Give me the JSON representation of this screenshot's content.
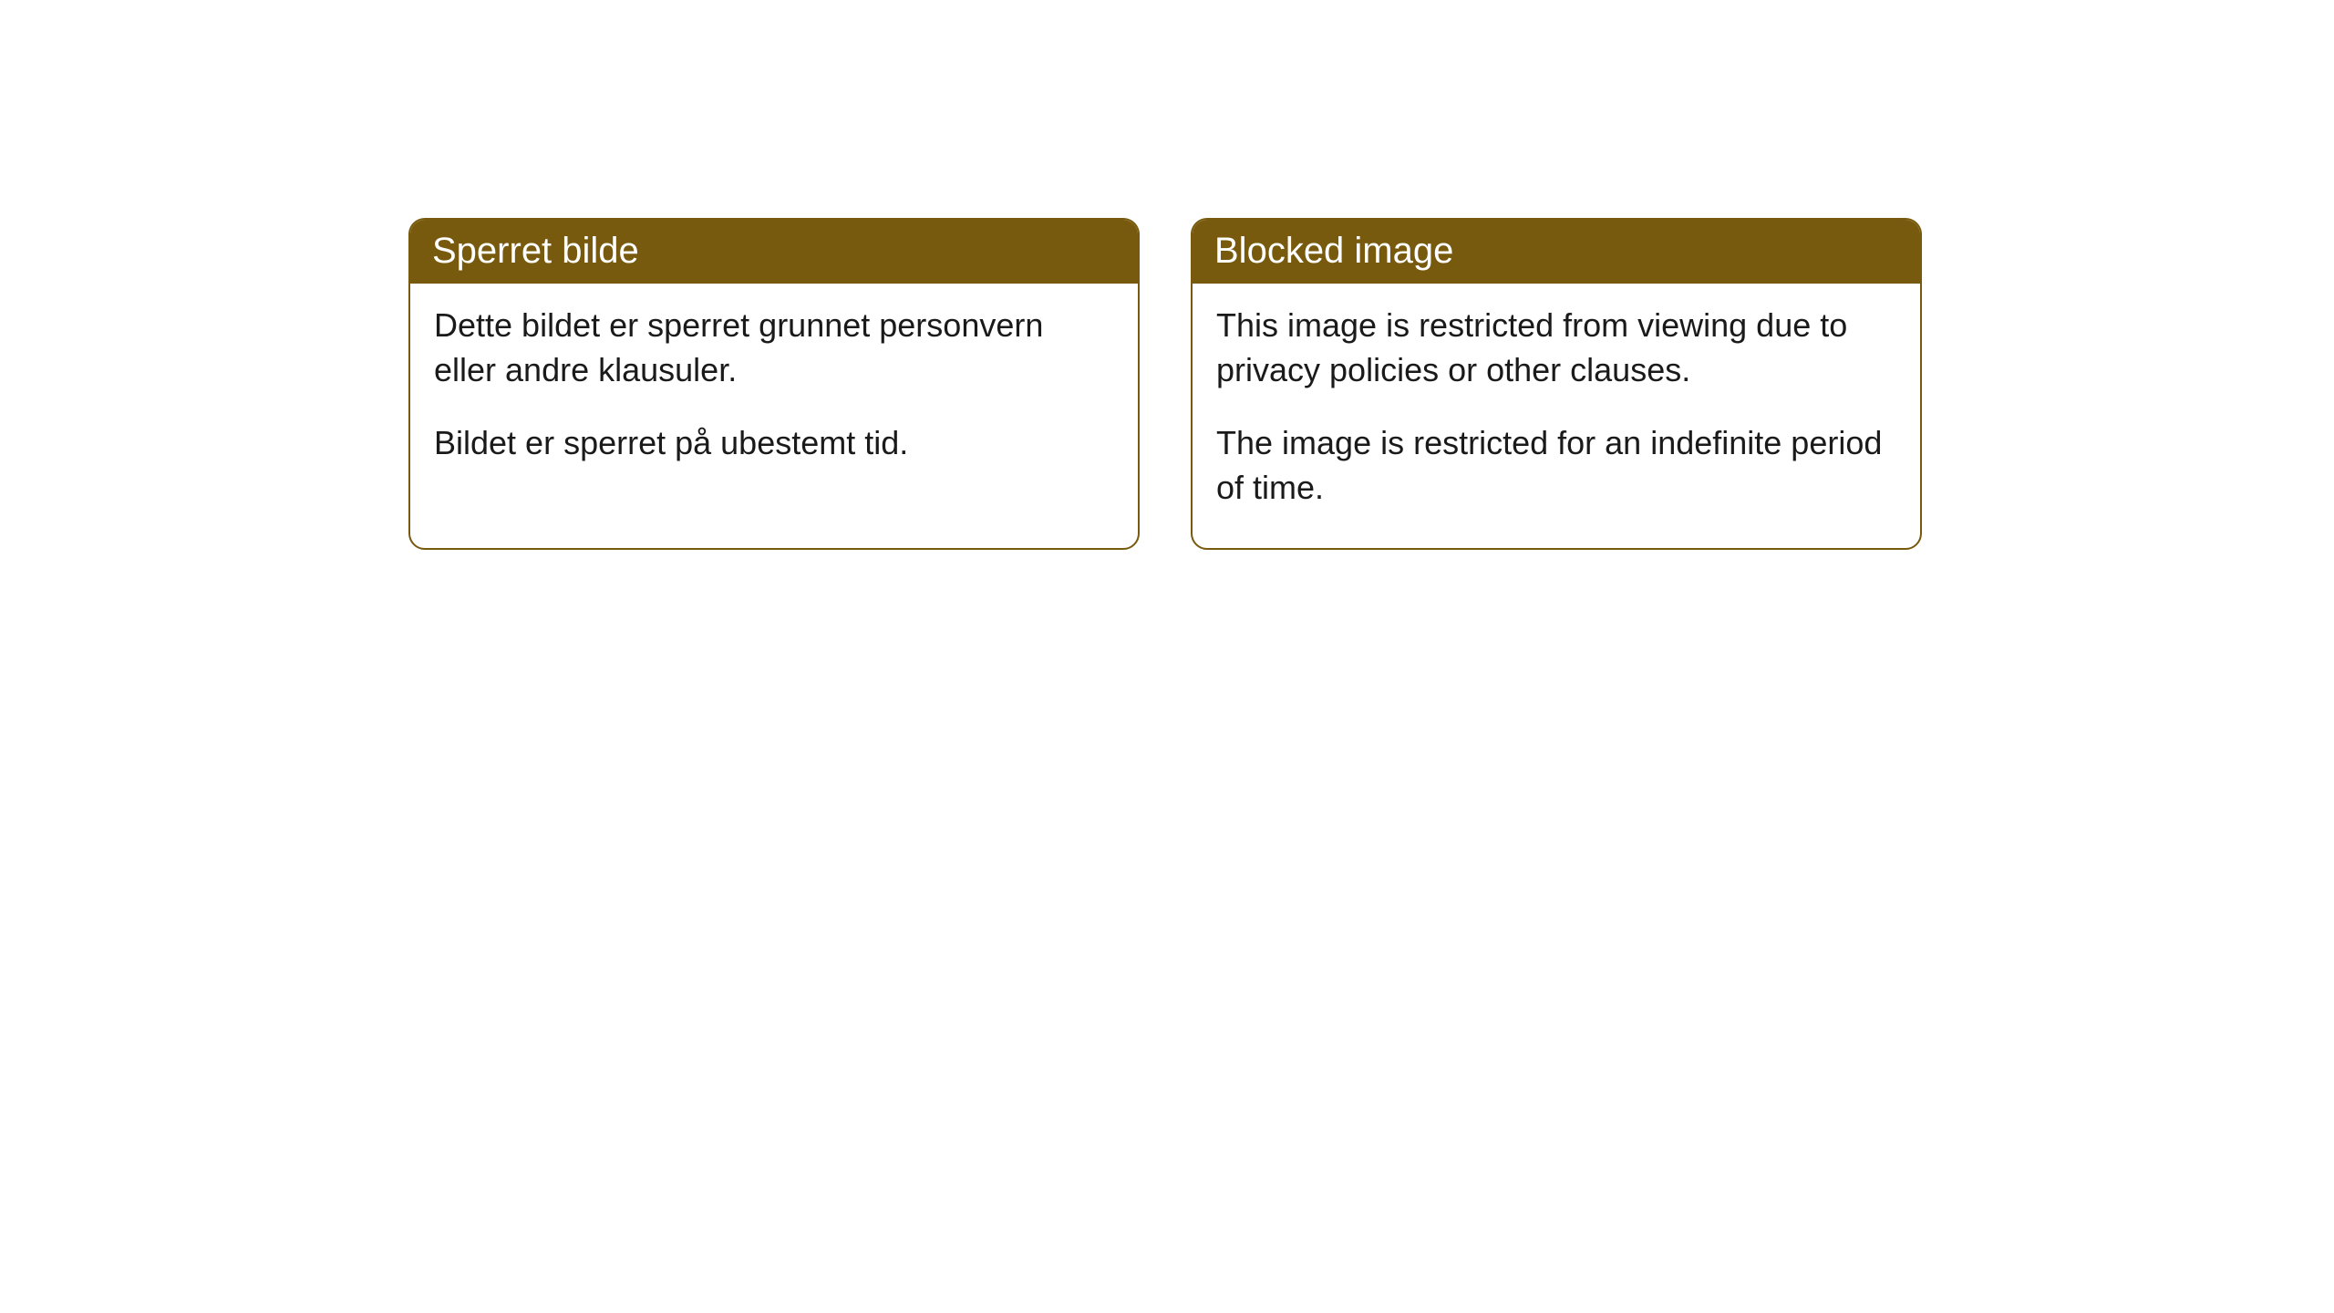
{
  "panels": [
    {
      "title": "Sperret bilde",
      "para1": "Dette bildet er sperret grunnet personvern eller andre klausuler.",
      "para2": "Bildet er sperret på ubestemt tid."
    },
    {
      "title": "Blocked image",
      "para1": "This image is restricted from viewing due to privacy policies or other clauses.",
      "para2": "The image is restricted for an indefinite period of time."
    }
  ],
  "colors": {
    "header_bg": "#785a0e",
    "header_text": "#ffffff",
    "border": "#785a0e",
    "body_text": "#1a1a1a",
    "page_bg": "#ffffff"
  }
}
